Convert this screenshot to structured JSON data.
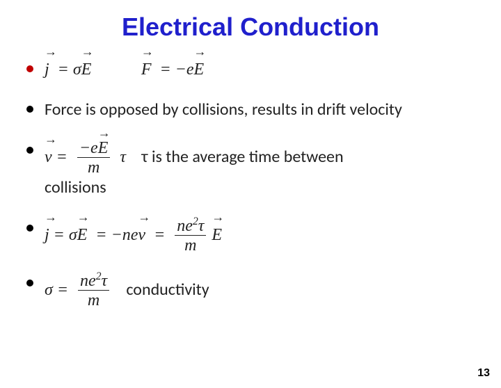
{
  "title": "Electrical Conduction",
  "title_color": "#2020cc",
  "title_fontsize": 36,
  "background_color": "#ffffff",
  "bullet_color": "#000000",
  "first_bullet_color": "#c00000",
  "text_color": "#222222",
  "bullets": [
    {
      "type": "equation_pair",
      "eq1_html": "j⃗ = σE⃗",
      "eq2_html": "F⃗ = −eE⃗"
    },
    {
      "type": "text",
      "text": "Force is opposed by collisions, results in drift velocity"
    },
    {
      "type": "equation_text",
      "eq_desc": "v⃗ = (−eE⃗ / m) τ",
      "trailing_text": "τ is the average time between collisions"
    },
    {
      "type": "equation",
      "eq_desc": "j⃗ = σE⃗ = −nev⃗ = (ne²τ / m) E⃗"
    },
    {
      "type": "equation_text",
      "eq_desc": "σ = ne²τ / m",
      "trailing_text": "conductivity"
    }
  ],
  "page_number": "13",
  "body_fontsize": 24
}
